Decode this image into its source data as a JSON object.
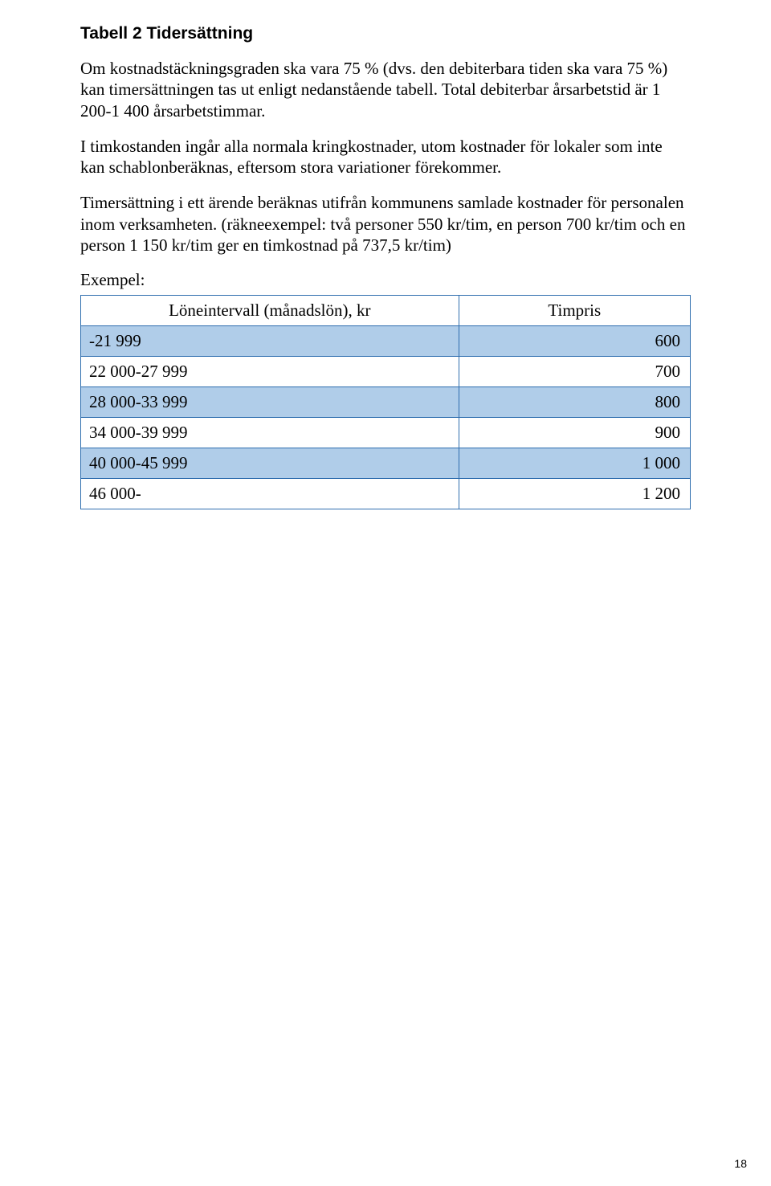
{
  "heading": "Tabell 2 Tidersättning",
  "paragraphs": {
    "p1": "Om kostnadstäckningsgraden ska vara 75 % (dvs. den debiterbara tiden ska vara 75 %) kan timersättningen tas ut enligt nedanstående tabell. Total debiterbar årsarbetstid är 1 200-1 400 årsarbetstimmar.",
    "p2": "I timkostanden ingår alla normala kringkostnader, utom kostnader för lokaler som inte kan schablonberäknas, eftersom stora variationer förekommer.",
    "p3": "Timersättning i ett ärende beräknas utifrån kommunens samlade kostnader för personalen inom verksamheten. (räkneexempel: två personer 550 kr/tim, en person 700 kr/tim och en person 1 150 kr/tim ger en timkostnad på 737,5 kr/tim)"
  },
  "example_label": "Exempel:",
  "table": {
    "columns": [
      "Löneintervall (månadslön), kr",
      "Timpris"
    ],
    "header_bg": "#ffffff",
    "border_color": "#2f6eaf",
    "shaded_bg": "#b0cde9",
    "rows": [
      {
        "label": "-21 999",
        "value": "600",
        "shaded": true
      },
      {
        "label": "22 000-27 999",
        "value": "700",
        "shaded": false
      },
      {
        "label": "28 000-33 999",
        "value": "800",
        "shaded": true
      },
      {
        "label": "34 000-39 999",
        "value": "900",
        "shaded": false
      },
      {
        "label": "40 000-45 999",
        "value": "1 000",
        "shaded": true
      },
      {
        "label": "46 000-",
        "value": "1 200",
        "shaded": false
      }
    ]
  },
  "page_number": "18"
}
